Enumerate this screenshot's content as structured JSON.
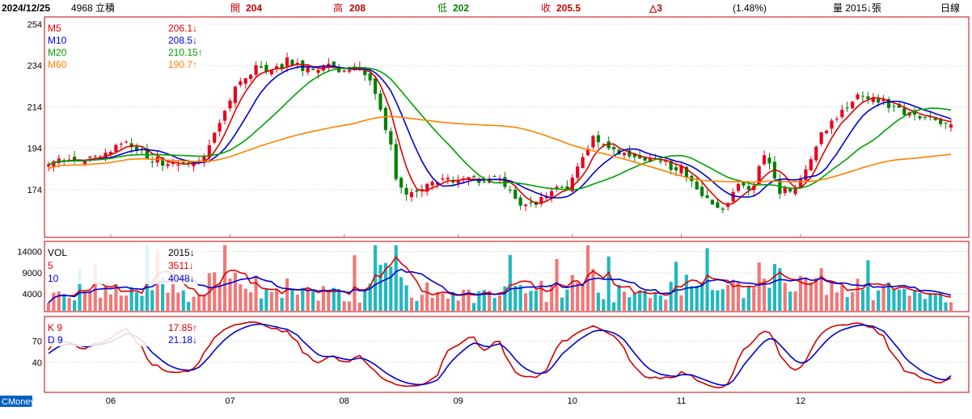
{
  "header": {
    "date": "2024/12/25",
    "stock": "4968 立積",
    "open_label": "開",
    "open": "204",
    "high_label": "高",
    "high": "208",
    "low_label": "低",
    "low": "202",
    "close_label": "收",
    "close": "205.5",
    "change": "△3",
    "change_pct": "(1.48%)",
    "volume": "量 2015↓張",
    "period": "日線"
  },
  "brand": "CMoney",
  "colors": {
    "up": "#e8001c",
    "down": "#008000",
    "ma5": "#e00000",
    "ma10": "#0000d0",
    "ma20": "#00a000",
    "ma60": "#ff8000",
    "vol_up": "#f07878",
    "vol_down": "#20b8c0",
    "k": "#d00000",
    "d": "#0000d0",
    "grid": "#d0d0d0",
    "border": "#c00000"
  },
  "chart_data": [
    {
      "type": "candlestick",
      "y_ticks": [
        "254",
        "234",
        "214",
        "194",
        "174"
      ],
      "ylim": [
        154,
        254
      ],
      "legend": [
        {
          "name": "M5",
          "value": "206.1",
          "arrow": "↓",
          "color_key": "ma5"
        },
        {
          "name": "M10",
          "value": "208.5",
          "arrow": "↓",
          "color_key": "ma10"
        },
        {
          "name": "M20",
          "value": "210.15",
          "arrow": "↑",
          "color_key": "ma20"
        },
        {
          "name": "M60",
          "value": "190.7",
          "arrow": "↑",
          "color_key": "ma60"
        }
      ],
      "last_bar": {
        "date": "2024/12/25",
        "open": 204,
        "high": 208,
        "low": 202,
        "close": 205.5
      },
      "ma_last": {
        "M5": 206.1,
        "M10": 208.5,
        "M20": 210.15,
        "M60": 190.7
      },
      "close_anchors": [
        [
          0,
          188
        ],
        [
          6,
          187
        ],
        [
          11,
          192
        ],
        [
          15,
          197
        ],
        [
          20,
          189
        ],
        [
          25,
          185
        ],
        [
          28,
          186
        ],
        [
          30,
          190
        ],
        [
          33,
          205
        ],
        [
          36,
          222
        ],
        [
          38,
          228
        ],
        [
          40,
          235
        ],
        [
          43,
          231
        ],
        [
          46,
          236
        ],
        [
          50,
          232
        ],
        [
          55,
          234
        ],
        [
          58,
          230
        ],
        [
          60,
          234
        ],
        [
          62,
          225
        ],
        [
          64,
          212
        ],
        [
          66,
          197
        ],
        [
          67,
          178
        ],
        [
          69,
          172
        ],
        [
          72,
          174
        ],
        [
          75,
          178
        ],
        [
          80,
          179
        ],
        [
          84,
          178
        ],
        [
          86,
          180
        ],
        [
          89,
          174
        ],
        [
          91,
          165
        ],
        [
          94,
          166
        ],
        [
          96,
          172
        ],
        [
          100,
          175
        ],
        [
          103,
          188
        ],
        [
          105,
          198
        ],
        [
          107,
          197
        ],
        [
          110,
          192
        ],
        [
          113,
          191
        ],
        [
          116,
          188
        ],
        [
          119,
          186
        ],
        [
          122,
          184
        ],
        [
          124,
          178
        ],
        [
          126,
          171
        ],
        [
          128,
          166
        ],
        [
          130,
          164
        ],
        [
          133,
          175
        ],
        [
          136,
          175
        ],
        [
          138,
          192
        ],
        [
          141,
          172
        ],
        [
          145,
          178
        ],
        [
          149,
          200
        ],
        [
          153,
          213
        ],
        [
          156,
          220
        ],
        [
          159,
          218
        ],
        [
          162,
          215
        ],
        [
          165,
          210
        ],
        [
          168,
          210
        ],
        [
          170,
          208
        ],
        [
          172,
          204
        ],
        [
          174,
          205.5
        ]
      ],
      "n_bars": 175,
      "x_months": [
        {
          "label": "06",
          "index": 12
        },
        {
          "label": "07",
          "index": 35
        },
        {
          "label": "08",
          "index": 57
        },
        {
          "label": "09",
          "index": 79
        },
        {
          "label": "10",
          "index": 101
        },
        {
          "label": "11",
          "index": 122
        },
        {
          "label": "12",
          "index": 145
        }
      ]
    },
    {
      "type": "bar",
      "title": "VOL",
      "y_ticks": [
        "14000",
        "9000",
        "4000"
      ],
      "ylim": [
        0,
        16000
      ],
      "legend": [
        {
          "name": "VOL",
          "value": "2015",
          "arrow": "↓",
          "color_key": "border"
        },
        {
          "name": "5",
          "value": "3511",
          "arrow": "↓",
          "color_key": "ma5"
        },
        {
          "name": "10",
          "value": "4048",
          "arrow": "↓",
          "color_key": "ma10"
        }
      ],
      "last_value": 2015
    },
    {
      "type": "line",
      "title": "KD",
      "y_ticks": [
        "70",
        "40"
      ],
      "ylim": [
        0,
        100
      ],
      "legend": [
        {
          "name": "K 9",
          "value": "17.85",
          "arrow": "↑",
          "color_key": "k"
        },
        {
          "name": "D 9",
          "value": "21.18",
          "arrow": "↓",
          "color_key": "d"
        }
      ],
      "k_last": 17.85,
      "d_last": 21.18
    }
  ]
}
